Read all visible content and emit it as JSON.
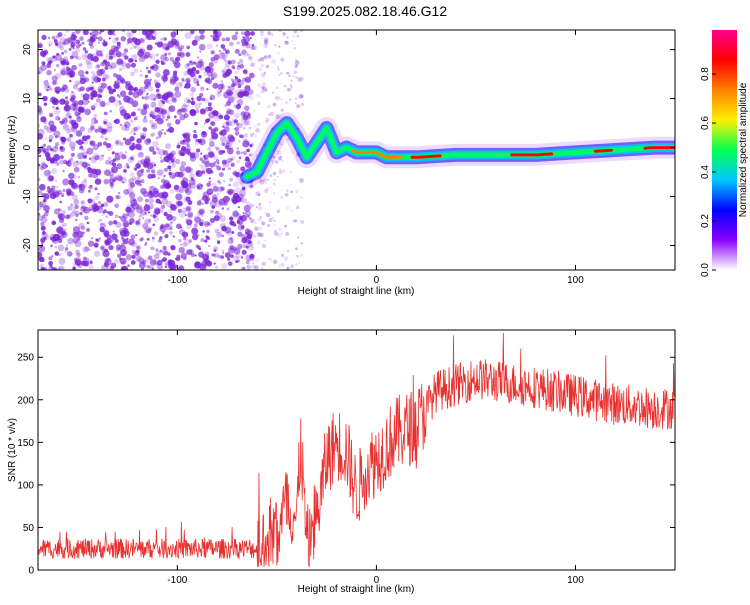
{
  "title": "S199.2025.082.18.46.G12",
  "colors": {
    "snr_line": "#e8312f",
    "scatter_dot": "#7b22d8",
    "colormap": [
      "#ffffff",
      "#8a00ff",
      "#0000ff",
      "#00c8ff",
      "#00ff50",
      "#fff000",
      "#ff8000",
      "#ff0000",
      "#ff0090"
    ]
  },
  "chart_data": [
    {
      "type": "heatmap",
      "xlabel": "Height of straight line (km)",
      "ylabel": "Frequency (Hz)",
      "xlim": [
        -170,
        150
      ],
      "ylim": [
        -25,
        24
      ],
      "x_ticks": [
        -100,
        0,
        100
      ],
      "y_ticks": [
        -20,
        -10,
        0,
        10,
        20
      ],
      "colorbar": {
        "label": "Normalized spectral amplitude",
        "range": [
          0,
          0.98
        ],
        "ticks": [
          "0.0",
          "0.2",
          "0.4",
          "0.6",
          "0.8"
        ]
      },
      "ridge": {
        "x": [
          -65,
          -60,
          -55,
          -50,
          -45,
          -40,
          -35,
          -30,
          -25,
          -20,
          -15,
          -10,
          -5,
          0,
          5,
          10,
          20,
          40,
          60,
          80,
          100,
          120,
          140,
          150
        ],
        "y": [
          -6,
          -5,
          -1,
          3,
          5,
          2,
          -2,
          1,
          4,
          -1,
          0,
          -1,
          -1,
          -1,
          -2,
          -2,
          -2,
          -1.5,
          -1.5,
          -1.5,
          -1,
          -0.5,
          0,
          0
        ]
      }
    },
    {
      "type": "line",
      "xlabel": "Height of straight line (km)",
      "ylabel": "SNR (10 * v/v)",
      "xlim": [
        -170,
        150
      ],
      "ylim": [
        0,
        282
      ],
      "x_ticks": [
        -100,
        0,
        100
      ],
      "y_ticks": [
        0,
        50,
        100,
        150,
        200,
        250
      ],
      "envelope": {
        "x": [
          -170,
          -60,
          -50,
          -45,
          -40,
          -38,
          -35,
          -30,
          -25,
          -20,
          -15,
          -10,
          -5,
          0,
          10,
          20,
          30,
          50,
          80,
          100,
          120,
          140,
          150
        ],
        "y": [
          25,
          25,
          40,
          80,
          60,
          150,
          30,
          60,
          130,
          150,
          140,
          90,
          120,
          130,
          160,
          170,
          210,
          225,
          215,
          205,
          195,
          190,
          190
        ]
      }
    }
  ]
}
